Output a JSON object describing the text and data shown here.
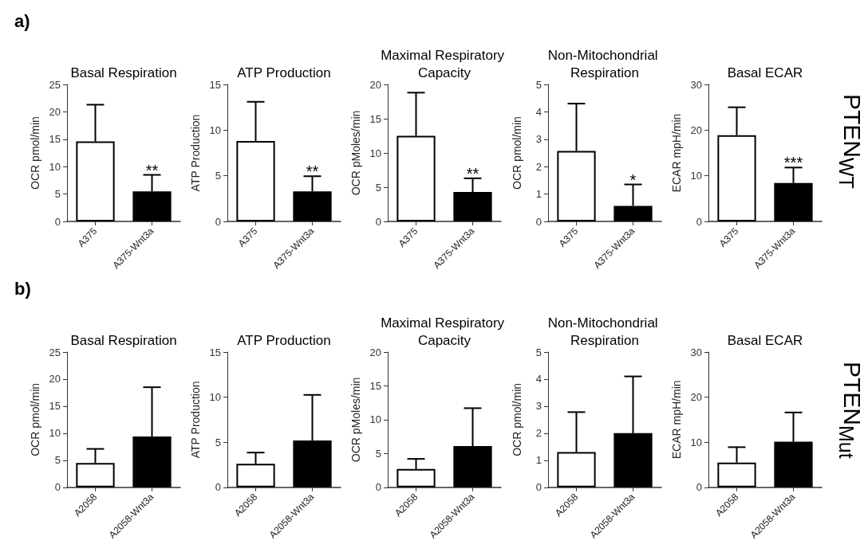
{
  "chart_data": [
    {
      "type": "bar",
      "title": "Basal Respiration",
      "ylabel": "OCR pmol/min",
      "categories": [
        "A375",
        "A375-Wnt3a"
      ],
      "values": [
        14.6,
        5.5
      ],
      "colors": [
        "#ffffff",
        "#000000"
      ],
      "errors": [
        [
          14.6,
          21.3
        ],
        [
          5.5,
          8.5
        ]
      ],
      "ylim": [
        0,
        25
      ],
      "yticks": [
        0,
        5,
        10,
        15,
        20,
        25
      ],
      "annotations": [
        "a)",
        "PTEN$_{WT}$",
        {
          "text": "**",
          "x": "A375-Wnt3a",
          "y": 8.5
        }
      ]
    },
    {
      "type": "bar",
      "title": "ATP Production",
      "ylabel": "ATP Production",
      "categories": [
        "A375",
        "A375-Wnt3a"
      ],
      "values": [
        8.8,
        3.3
      ],
      "colors": [
        "#ffffff",
        "#000000"
      ],
      "errors": [
        [
          8.8,
          13.1
        ],
        [
          3.3,
          4.95
        ]
      ],
      "ylim": [
        0,
        15
      ],
      "yticks": [
        0,
        5,
        10,
        15
      ],
      "annotations": [
        {
          "text": "**",
          "x": "A375-Wnt3a",
          "y": 4.95
        }
      ]
    },
    {
      "type": "bar",
      "title": "Maximal Respiratory Capacity",
      "ylabel": "OCR pMoles/min",
      "categories": [
        "A375",
        "A375-Wnt3a"
      ],
      "values": [
        12.5,
        4.3
      ],
      "colors": [
        "#ffffff",
        "#000000"
      ],
      "errors": [
        [
          12.5,
          18.8
        ],
        [
          4.3,
          6.3
        ]
      ],
      "ylim": [
        0,
        20
      ],
      "yticks": [
        0,
        5,
        10,
        15,
        20
      ],
      "annotations": [
        {
          "text": "**",
          "x": "A375-Wnt3a",
          "y": 6.3
        }
      ]
    },
    {
      "type": "bar",
      "title": "Non-Mitochondrial Respiration",
      "ylabel": "OCR pmol/min",
      "categories": [
        "A375",
        "A375-Wnt3a"
      ],
      "values": [
        2.57,
        0.57
      ],
      "colors": [
        "#ffffff",
        "#000000"
      ],
      "errors": [
        [
          2.57,
          4.3
        ],
        [
          0.57,
          1.35
        ]
      ],
      "ylim": [
        0,
        5
      ],
      "yticks": [
        0,
        1,
        2,
        3,
        4,
        5
      ],
      "annotations": [
        {
          "text": "*",
          "x": "A375-Wnt3a",
          "y": 1.35
        }
      ]
    },
    {
      "type": "bar",
      "title": "Basal ECAR",
      "ylabel": "ECAR mpH/min",
      "categories": [
        "A375",
        "A375-Wnt3a"
      ],
      "values": [
        18.9,
        8.4
      ],
      "colors": [
        "#ffffff",
        "#000000"
      ],
      "errors": [
        [
          18.9,
          25
        ],
        [
          8.4,
          11.8
        ]
      ],
      "ylim": [
        0,
        30
      ],
      "yticks": [
        0,
        10,
        20,
        30
      ],
      "annotations": [
        {
          "text": "***",
          "x": "A375-Wnt3a",
          "y": 11.8
        }
      ]
    },
    {
      "type": "bar",
      "title": "Basal Respiration",
      "ylabel": "OCR pmol/min",
      "categories": [
        "A2058",
        "A2058-Wnt3a"
      ],
      "values": [
        4.5,
        9.4
      ],
      "colors": [
        "#ffffff",
        "#000000"
      ],
      "errors": [
        [
          4.5,
          7.1
        ],
        [
          9.4,
          18.5
        ]
      ],
      "ylim": [
        0,
        25
      ],
      "yticks": [
        0,
        5,
        10,
        15,
        20,
        25
      ],
      "annotations": [
        "b)",
        "PTEN$_{Mut}$"
      ]
    },
    {
      "type": "bar",
      "title": "ATP Production",
      "ylabel": "ATP Production",
      "categories": [
        "A2058",
        "A2058-Wnt3a"
      ],
      "values": [
        2.6,
        5.2
      ],
      "colors": [
        "#ffffff",
        "#000000"
      ],
      "errors": [
        [
          2.6,
          3.85
        ],
        [
          5.2,
          10.25
        ]
      ],
      "ylim": [
        0,
        15
      ],
      "yticks": [
        0,
        5,
        10,
        15
      ]
    },
    {
      "type": "bar",
      "title": "Maximal Respiratory Capacity",
      "ylabel": "OCR pMoles/min",
      "categories": [
        "A2058",
        "A2058-Wnt3a"
      ],
      "values": [
        2.7,
        6.1
      ],
      "colors": [
        "#ffffff",
        "#000000"
      ],
      "errors": [
        [
          2.7,
          4.2
        ],
        [
          6.1,
          11.7
        ]
      ],
      "ylim": [
        0,
        20
      ],
      "yticks": [
        0,
        5,
        10,
        15,
        20
      ]
    },
    {
      "type": "bar",
      "title": "Non-Mitochondrial Respiration",
      "ylabel": "OCR pmol/min",
      "categories": [
        "A2058",
        "A2058-Wnt3a"
      ],
      "values": [
        1.3,
        2.0
      ],
      "colors": [
        "#ffffff",
        "#000000"
      ],
      "errors": [
        [
          1.3,
          2.78
        ],
        [
          2.0,
          4.1
        ]
      ],
      "ylim": [
        0,
        5
      ],
      "yticks": [
        0,
        1,
        2,
        3,
        4,
        5
      ]
    },
    {
      "type": "bar",
      "title": "Basal ECAR",
      "ylabel": "ECAR mpH/min",
      "categories": [
        "A2058",
        "A2058-Wnt3a"
      ],
      "values": [
        5.5,
        10.1
      ],
      "colors": [
        "#ffffff",
        "#000000"
      ],
      "errors": [
        [
          5.5,
          8.9
        ],
        [
          10.1,
          16.6
        ]
      ],
      "ylim": [
        0,
        30
      ],
      "yticks": [
        0,
        10,
        20,
        30
      ]
    }
  ]
}
